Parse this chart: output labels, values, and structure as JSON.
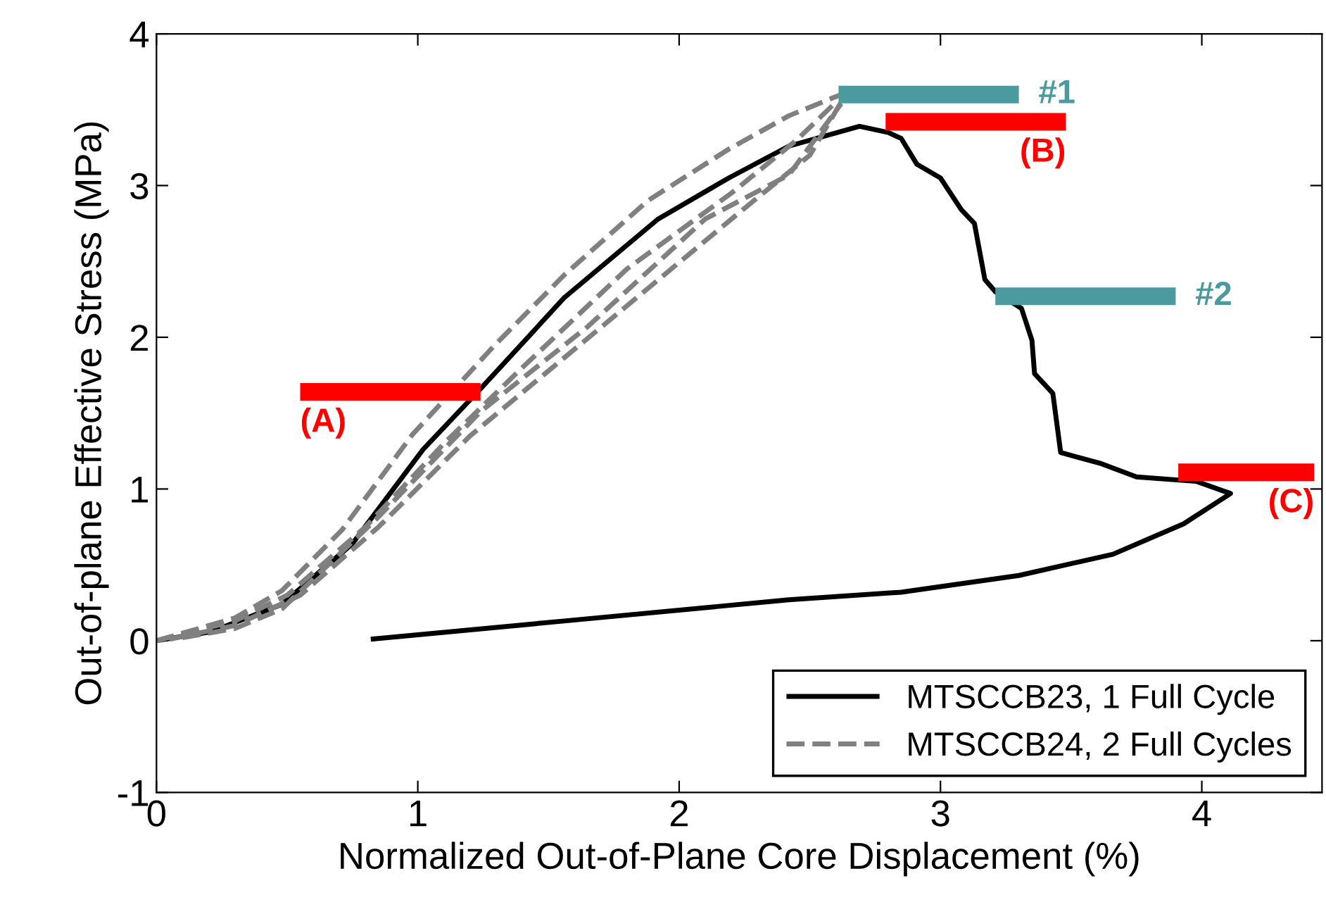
{
  "chart_data": {
    "type": "line",
    "xlabel": "Normalized Out-of-Plane Core Displacement (%)",
    "ylabel": "Out-of-plane Effective Stress (MPa)",
    "xlim": [
      0,
      4.46
    ],
    "ylim": [
      -1,
      4
    ],
    "xticks": [
      0,
      1,
      2,
      3,
      4
    ],
    "yticks": [
      -1,
      0,
      1,
      2,
      3,
      4
    ],
    "grid": false,
    "legend": "bottom right",
    "series": [
      {
        "name": "MTSCCB23, 1 Full Cycle",
        "color": "#000000",
        "line_style": "solid",
        "x": [
          0,
          0.21,
          0.48,
          0.75,
          1.02,
          1.24,
          1.56,
          1.92,
          2.19,
          2.42,
          2.69,
          2.8,
          2.85,
          2.91,
          3.0,
          3.08,
          3.13,
          3.17,
          3.21,
          3.31,
          3.35,
          3.36,
          3.43,
          3.46,
          3.61,
          3.75,
          3.98,
          4.11,
          3.93,
          3.66,
          3.3,
          2.85,
          2.42,
          1.56,
          0.82
        ],
        "values": [
          0,
          0.06,
          0.24,
          0.64,
          1.26,
          1.66,
          2.26,
          2.78,
          3.05,
          3.26,
          3.39,
          3.35,
          3.31,
          3.14,
          3.05,
          2.84,
          2.75,
          2.38,
          2.3,
          2.19,
          1.98,
          1.76,
          1.63,
          1.24,
          1.17,
          1.08,
          1.05,
          0.97,
          0.77,
          0.57,
          0.43,
          0.32,
          0.27,
          0.13,
          0.01
        ]
      },
      {
        "name": "MTSCCB24, 2 Full Cycles",
        "color": "#808080",
        "line_style": "dashed",
        "x": [
          0,
          0.3,
          0.48,
          0.71,
          0.98,
          1.29,
          1.56,
          1.88,
          2.19,
          2.42,
          2.62
        ],
        "values": [
          0,
          0.15,
          0.33,
          0.73,
          1.36,
          1.94,
          2.41,
          2.9,
          3.24,
          3.46,
          3.6
        ]
      },
      {
        "color": "#808080",
        "line_style": "dashed",
        "x": [
          0,
          0.3,
          0.5,
          0.8,
          1.1,
          1.4,
          1.8,
          2.2,
          2.45,
          2.6
        ],
        "values": [
          0,
          0.13,
          0.3,
          0.75,
          1.3,
          1.8,
          2.45,
          2.95,
          3.3,
          3.55
        ]
      },
      {
        "color": "#808080",
        "line_style": "dashed",
        "x": [
          0.05,
          0.3,
          0.55,
          0.85,
          1.2,
          1.55,
          1.9,
          2.25,
          2.5,
          2.62
        ],
        "values": [
          0.01,
          0.1,
          0.3,
          0.75,
          1.35,
          1.85,
          2.35,
          2.85,
          3.2,
          3.55
        ]
      },
      {
        "color": "#808080",
        "line_style": "dashed",
        "x": [
          0.1,
          0.3,
          0.48,
          0.84,
          1.24,
          1.65,
          2.1,
          2.42,
          2.62
        ],
        "values": [
          0.02,
          0.08,
          0.21,
          0.8,
          1.51,
          2.07,
          2.78,
          3.07,
          3.54
        ]
      },
      {
        "color": "#ff0000",
        "line_style": "solid",
        "x": [
          0.55,
          1.24
        ],
        "values": [
          1.64,
          1.64
        ]
      },
      {
        "color": "#4a9aa0",
        "line_style": "solid",
        "x": [
          2.61,
          3.3
        ],
        "values": [
          3.6,
          3.6
        ]
      },
      {
        "color": "#ff0000",
        "line_style": "solid",
        "x": [
          2.79,
          3.48
        ],
        "values": [
          3.42,
          3.42
        ]
      },
      {
        "color": "#4a9aa0",
        "line_style": "solid",
        "x": [
          3.21,
          3.9
        ],
        "values": [
          2.27,
          2.27
        ]
      },
      {
        "color": "#ff0000",
        "line_style": "solid",
        "x": [
          3.91,
          4.43
        ],
        "values": [
          1.11,
          1.11
        ]
      }
    ],
    "annotations": [
      {
        "text": "(A)",
        "x": 0.55,
        "y": 1.64
      },
      {
        "text": "#1",
        "x": 3.3,
        "y": 3.6
      },
      {
        "text": "(B)",
        "x": 3.48,
        "y": 3.42
      },
      {
        "text": "#2",
        "x": 3.9,
        "y": 2.27
      },
      {
        "text": "(C)",
        "x": 4.43,
        "y": 1.11
      }
    ]
  }
}
